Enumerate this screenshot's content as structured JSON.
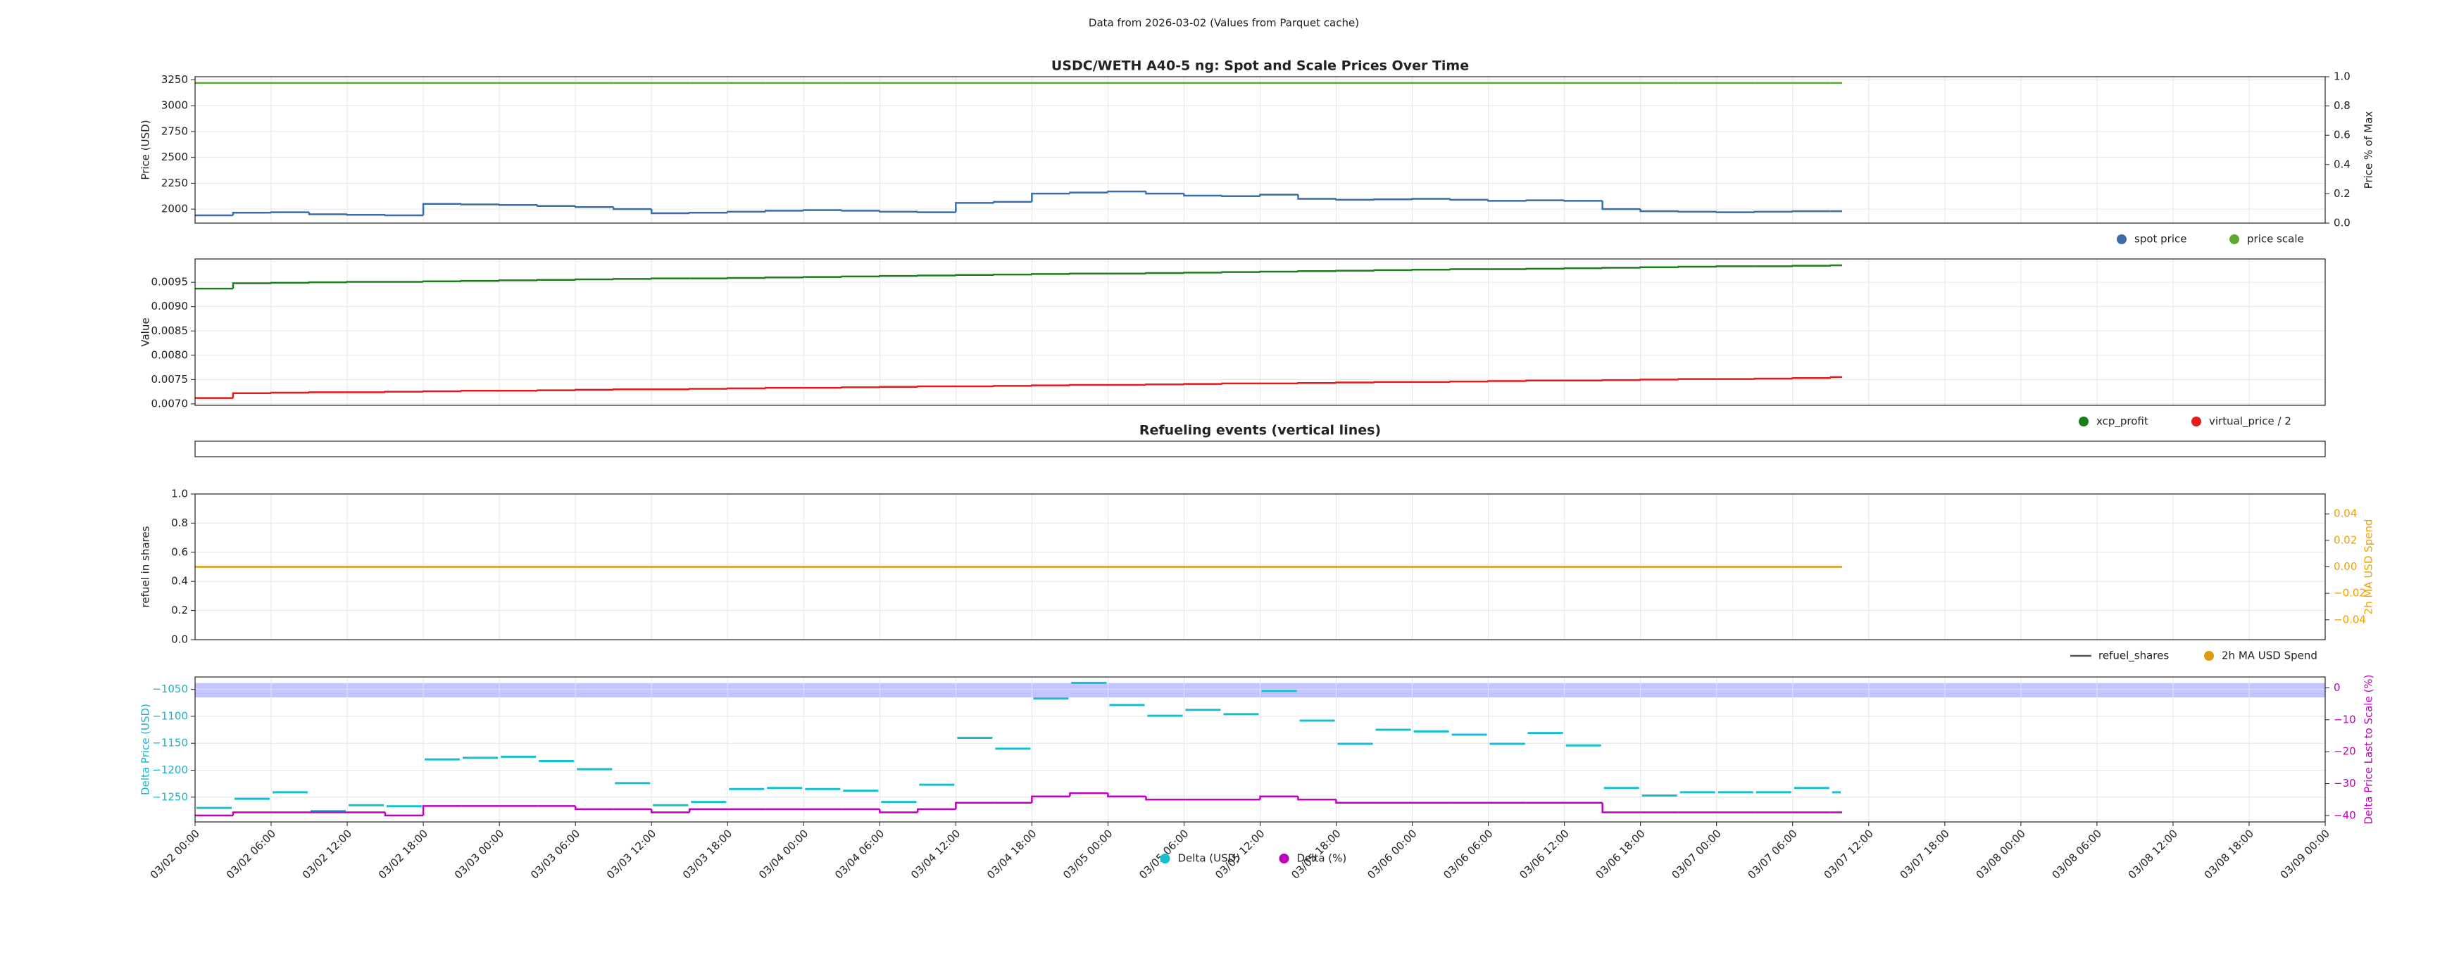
{
  "suptitle": "Data from 2026-03-02 (Values from Parquet cache)",
  "chart_data": [
    {
      "type": "line",
      "title": "USDC/WETH A40-5 ng: Spot and Scale Prices Over Time",
      "ylabel": "Price (USD)",
      "y2label": "Price % of Max",
      "x": [
        "03/02 00:00",
        "03/02 03:00",
        "03/02 06:00",
        "03/02 09:00",
        "03/02 12:00",
        "03/02 15:00",
        "03/02 18:00",
        "03/02 21:00",
        "03/03 00:00",
        "03/03 03:00",
        "03/03 06:00",
        "03/03 09:00",
        "03/03 12:00",
        "03/03 15:00",
        "03/03 18:00",
        "03/03 21:00",
        "03/04 00:00",
        "03/04 03:00",
        "03/04 06:00",
        "03/04 09:00",
        "03/04 12:00",
        "03/04 15:00",
        "03/04 18:00",
        "03/04 21:00",
        "03/05 00:00",
        "03/05 03:00",
        "03/05 06:00",
        "03/05 09:00",
        "03/05 12:00",
        "03/05 15:00",
        "03/05 18:00",
        "03/05 21:00",
        "03/06 00:00",
        "03/06 03:00",
        "03/06 06:00",
        "03/06 09:00",
        "03/06 12:00",
        "03/06 15:00",
        "03/06 18:00",
        "03/06 21:00",
        "03/07 00:00",
        "03/07 03:00",
        "03/07 06:00",
        "03/07 09:00"
      ],
      "xlim": [
        "03/02 00:00",
        "03/09 00:00"
      ],
      "ylim": [
        1865,
        3280
      ],
      "yticks": [
        2000,
        2250,
        2500,
        2750,
        3000,
        3250
      ],
      "y2lim": [
        0,
        1
      ],
      "y2ticks": [
        {
          "value": 0,
          "label": "0.0"
        },
        {
          "value": 0.2,
          "label": "0.2"
        },
        {
          "value": 0.4,
          "label": "0.4"
        },
        {
          "value": 0.6,
          "label": "0.6"
        },
        {
          "value": 0.8,
          "label": "0.8"
        },
        {
          "value": 1,
          "label": "1.0"
        }
      ],
      "grid": true,
      "legend": "lower right",
      "series": [
        {
          "name": "spot price",
          "color": "#3a6ca8",
          "values": [
            1940,
            1965,
            1970,
            1950,
            1945,
            1940,
            2050,
            2045,
            2040,
            2030,
            2020,
            2000,
            1960,
            1965,
            1975,
            1985,
            1990,
            1985,
            1975,
            1970,
            2060,
            2070,
            2150,
            2160,
            2170,
            2150,
            2130,
            2125,
            2140,
            2100,
            2090,
            2095,
            2100,
            2090,
            2080,
            2085,
            2080,
            2000,
            1980,
            1975,
            1970,
            1975,
            1980,
            1980
          ]
        },
        {
          "name": "price scale",
          "color": "#5ea832",
          "values": [
            3220,
            3220,
            3220,
            3220,
            3220,
            3220,
            3220,
            3220,
            3220,
            3220,
            3220,
            3220,
            3220,
            3220,
            3220,
            3220,
            3220,
            3220,
            3220,
            3220,
            3220,
            3220,
            3220,
            3220,
            3220,
            3220,
            3220,
            3220,
            3220,
            3220,
            3220,
            3220,
            3220,
            3220,
            3220,
            3220,
            3220,
            3220,
            3220,
            3220,
            3220,
            3220,
            3220,
            3220
          ]
        }
      ]
    },
    {
      "type": "line",
      "ylabel": "Value",
      "x": [
        "03/02 00:00",
        "03/02 03:00",
        "03/02 06:00",
        "03/02 09:00",
        "03/02 12:00",
        "03/02 15:00",
        "03/02 18:00",
        "03/02 21:00",
        "03/03 00:00",
        "03/03 03:00",
        "03/03 06:00",
        "03/03 09:00",
        "03/03 12:00",
        "03/03 15:00",
        "03/03 18:00",
        "03/03 21:00",
        "03/04 00:00",
        "03/04 03:00",
        "03/04 06:00",
        "03/04 09:00",
        "03/04 12:00",
        "03/04 15:00",
        "03/04 18:00",
        "03/04 21:00",
        "03/05 00:00",
        "03/05 03:00",
        "03/05 06:00",
        "03/05 09:00",
        "03/05 12:00",
        "03/05 15:00",
        "03/05 18:00",
        "03/05 21:00",
        "03/06 00:00",
        "03/06 03:00",
        "03/06 06:00",
        "03/06 09:00",
        "03/06 12:00",
        "03/06 15:00",
        "03/06 18:00",
        "03/06 21:00",
        "03/07 00:00",
        "03/07 03:00",
        "03/07 06:00",
        "03/07 09:00"
      ],
      "xlim": [
        "03/02 00:00",
        "03/09 00:00"
      ],
      "ylim": [
        0.00697,
        0.00998
      ],
      "yticks": [
        {
          "value": 0.007,
          "label": "0.0070"
        },
        {
          "value": 0.0075,
          "label": "0.0075"
        },
        {
          "value": 0.008,
          "label": "0.0080"
        },
        {
          "value": 0.0085,
          "label": "0.0085"
        },
        {
          "value": 0.009,
          "label": "0.0090"
        },
        {
          "value": 0.0095,
          "label": "0.0095"
        }
      ],
      "grid": true,
      "legend": "lower right",
      "series": [
        {
          "name": "xcp_profit",
          "color": "#1a7f1a",
          "values": [
            0.00937,
            0.00948,
            0.00949,
            0.0095,
            0.00951,
            0.00951,
            0.00952,
            0.00953,
            0.00954,
            0.00955,
            0.00956,
            0.00957,
            0.00958,
            0.00958,
            0.00959,
            0.0096,
            0.00961,
            0.00962,
            0.00963,
            0.00964,
            0.00965,
            0.00966,
            0.00967,
            0.00968,
            0.00968,
            0.00969,
            0.0097,
            0.00971,
            0.00972,
            0.00973,
            0.00974,
            0.00975,
            0.00976,
            0.00977,
            0.00977,
            0.00978,
            0.00979,
            0.0098,
            0.00981,
            0.00982,
            0.00983,
            0.00983,
            0.00984,
            0.00985
          ]
        },
        {
          "name": "virtual_price / 2",
          "color": "#e41a1c",
          "values": [
            0.00712,
            0.00722,
            0.00723,
            0.00724,
            0.00724,
            0.00725,
            0.00726,
            0.00727,
            0.00727,
            0.00728,
            0.00729,
            0.0073,
            0.0073,
            0.00731,
            0.00732,
            0.00733,
            0.00733,
            0.00734,
            0.00735,
            0.00736,
            0.00736,
            0.00737,
            0.00738,
            0.00739,
            0.00739,
            0.0074,
            0.00741,
            0.00742,
            0.00742,
            0.00743,
            0.00744,
            0.00745,
            0.00745,
            0.00746,
            0.00747,
            0.00748,
            0.00748,
            0.00749,
            0.0075,
            0.00751,
            0.00751,
            0.00752,
            0.00753,
            0.00755
          ]
        }
      ]
    },
    {
      "type": "line",
      "title": "Refueling events (vertical lines)",
      "xlim": [
        "03/02 00:00",
        "03/09 00:00"
      ]
    },
    {
      "type": "line",
      "ylabel": "refuel in shares",
      "y2label": "2h MA USD Spend",
      "y2_color": "#f0a000",
      "x": [
        "03/02 00:00",
        "03/02 03:00",
        "03/02 06:00",
        "03/02 09:00",
        "03/02 12:00",
        "03/02 15:00",
        "03/02 18:00",
        "03/02 21:00",
        "03/03 00:00",
        "03/03 03:00",
        "03/03 06:00",
        "03/03 09:00",
        "03/03 12:00",
        "03/03 15:00",
        "03/03 18:00",
        "03/03 21:00",
        "03/04 00:00",
        "03/04 03:00",
        "03/04 06:00",
        "03/04 09:00",
        "03/04 12:00",
        "03/04 15:00",
        "03/04 18:00",
        "03/04 21:00",
        "03/05 00:00",
        "03/05 03:00",
        "03/05 06:00",
        "03/05 09:00",
        "03/05 12:00",
        "03/05 15:00",
        "03/05 18:00",
        "03/05 21:00",
        "03/06 00:00",
        "03/06 03:00",
        "03/06 06:00",
        "03/06 09:00",
        "03/06 12:00",
        "03/06 15:00",
        "03/06 18:00",
        "03/06 21:00",
        "03/07 00:00",
        "03/07 03:00",
        "03/07 06:00",
        "03/07 09:00"
      ],
      "xlim": [
        "03/02 00:00",
        "03/09 00:00"
      ],
      "ylim": [
        0,
        1
      ],
      "yticks": [
        {
          "value": 0,
          "label": "0.0"
        },
        {
          "value": 0.2,
          "label": "0.2"
        },
        {
          "value": 0.4,
          "label": "0.4"
        },
        {
          "value": 0.6,
          "label": "0.6"
        },
        {
          "value": 0.8,
          "label": "0.8"
        },
        {
          "value": 1,
          "label": "1.0"
        }
      ],
      "y2lim": [
        -0.055,
        0.055
      ],
      "y2ticks": [
        {
          "value": -0.04,
          "label": "−0.04"
        },
        {
          "value": -0.02,
          "label": "−0.02"
        },
        {
          "value": 0,
          "label": "0.00"
        },
        {
          "value": 0.02,
          "label": "0.02"
        },
        {
          "value": 0.04,
          "label": "0.04"
        }
      ],
      "grid": true,
      "legend": "lower right",
      "series": [
        {
          "name": "refuel_shares",
          "color": "#555555",
          "legend_marker": "line",
          "values": [
            null,
            null,
            null,
            null,
            null,
            null,
            null,
            null,
            null,
            null,
            null,
            null,
            null,
            null,
            null,
            null,
            null,
            null,
            null,
            null,
            null,
            null,
            null,
            null,
            null,
            null,
            null,
            null,
            null,
            null,
            null,
            null,
            null,
            null,
            null,
            null,
            null,
            null,
            null,
            null,
            null,
            null,
            null,
            null
          ]
        },
        {
          "name": "2h MA USD Spend",
          "color": "#e09a10",
          "axis": "y2",
          "values": [
            0,
            0,
            0,
            0,
            0,
            0,
            0,
            0,
            0,
            0,
            0,
            0,
            0,
            0,
            0,
            0,
            0,
            0,
            0,
            0,
            0,
            0,
            0,
            0,
            0,
            0,
            0,
            0,
            0,
            0,
            0,
            0,
            0,
            0,
            0,
            0,
            0,
            0,
            0,
            0,
            0,
            0,
            0,
            0
          ]
        }
      ]
    },
    {
      "type": "line",
      "ylabel": "Delta Price (USD)",
      "y2label": "Delta Price Last to Scale (%)",
      "y_color": "#17b5c8",
      "y2_color": "#c000c0",
      "x": [
        "03/02 00:00",
        "03/02 03:00",
        "03/02 06:00",
        "03/02 09:00",
        "03/02 12:00",
        "03/02 15:00",
        "03/02 18:00",
        "03/02 21:00",
        "03/03 00:00",
        "03/03 03:00",
        "03/03 06:00",
        "03/03 09:00",
        "03/03 12:00",
        "03/03 15:00",
        "03/03 18:00",
        "03/03 21:00",
        "03/04 00:00",
        "03/04 03:00",
        "03/04 06:00",
        "03/04 09:00",
        "03/04 12:00",
        "03/04 15:00",
        "03/04 18:00",
        "03/04 21:00",
        "03/05 00:00",
        "03/05 03:00",
        "03/05 06:00",
        "03/05 09:00",
        "03/05 12:00",
        "03/05 15:00",
        "03/05 18:00",
        "03/05 21:00",
        "03/06 00:00",
        "03/06 03:00",
        "03/06 06:00",
        "03/06 09:00",
        "03/06 12:00",
        "03/06 15:00",
        "03/06 18:00",
        "03/06 21:00",
        "03/07 00:00",
        "03/07 03:00",
        "03/07 06:00",
        "03/07 09:00"
      ],
      "xlim": [
        "03/02 00:00",
        "03/09 00:00"
      ],
      "xticks": [
        "03/02 00:00",
        "03/02 06:00",
        "03/02 12:00",
        "03/02 18:00",
        "03/03 00:00",
        "03/03 06:00",
        "03/03 12:00",
        "03/03 18:00",
        "03/04 00:00",
        "03/04 06:00",
        "03/04 12:00",
        "03/04 18:00",
        "03/05 00:00",
        "03/05 06:00",
        "03/05 12:00",
        "03/05 18:00",
        "03/06 00:00",
        "03/06 06:00",
        "03/06 12:00",
        "03/06 18:00",
        "03/07 00:00",
        "03/07 06:00",
        "03/07 12:00",
        "03/07 18:00",
        "03/08 00:00",
        "03/08 06:00",
        "03/08 12:00",
        "03/08 18:00",
        "03/09 00:00"
      ],
      "ylim": [
        -1296,
        -1027
      ],
      "yticks": [
        {
          "value": -1250,
          "label": "−1250"
        },
        {
          "value": -1200,
          "label": "−1200"
        },
        {
          "value": -1150,
          "label": "−1150"
        },
        {
          "value": -1100,
          "label": "−1100"
        },
        {
          "value": -1050,
          "label": "−1050"
        }
      ],
      "y2lim": [
        -42,
        3.4
      ],
      "y2ticks": [
        {
          "value": -40,
          "label": "−40"
        },
        {
          "value": -30,
          "label": "−30"
        },
        {
          "value": -20,
          "label": "−20"
        },
        {
          "value": -10,
          "label": "−10"
        },
        0
      ],
      "band": [
        -3,
        1.5
      ],
      "band_color": "#c4c4ff",
      "grid": true,
      "legend": "lower center",
      "series": [
        {
          "name": "Delta (USD)",
          "color": "#17becf",
          "style": "dashes",
          "values": [
            -1270,
            -1253,
            -1241,
            -1276,
            -1265,
            -1267,
            -1180,
            -1177,
            -1175,
            -1183,
            -1198,
            -1224,
            -1265,
            -1259,
            -1235,
            -1233,
            -1235,
            -1238,
            -1259,
            -1227,
            -1140,
            -1160,
            -1067,
            -1038,
            -1079,
            -1099,
            -1088,
            -1096,
            -1053,
            -1108,
            -1151,
            -1125,
            -1128,
            -1134,
            -1151,
            -1131,
            -1154,
            -1233,
            -1247,
            -1241,
            -1241,
            -1241,
            -1233,
            -1241
          ]
        },
        {
          "name": "Delta (%)",
          "color": "#c000c0",
          "axis": "y2",
          "values": [
            -40,
            -39,
            -39,
            -39,
            -39,
            -40,
            -37,
            -37,
            -37,
            -37,
            -38,
            -38,
            -39,
            -38,
            -38,
            -38,
            -38,
            -38,
            -39,
            -38,
            -36,
            -36,
            -34,
            -33,
            -34,
            -35,
            -35,
            -35,
            -34,
            -35,
            -36,
            -36,
            -36,
            -36,
            -36,
            -36,
            -36,
            -39,
            -39,
            -39,
            -39,
            -39,
            -39,
            -39
          ]
        }
      ]
    }
  ]
}
